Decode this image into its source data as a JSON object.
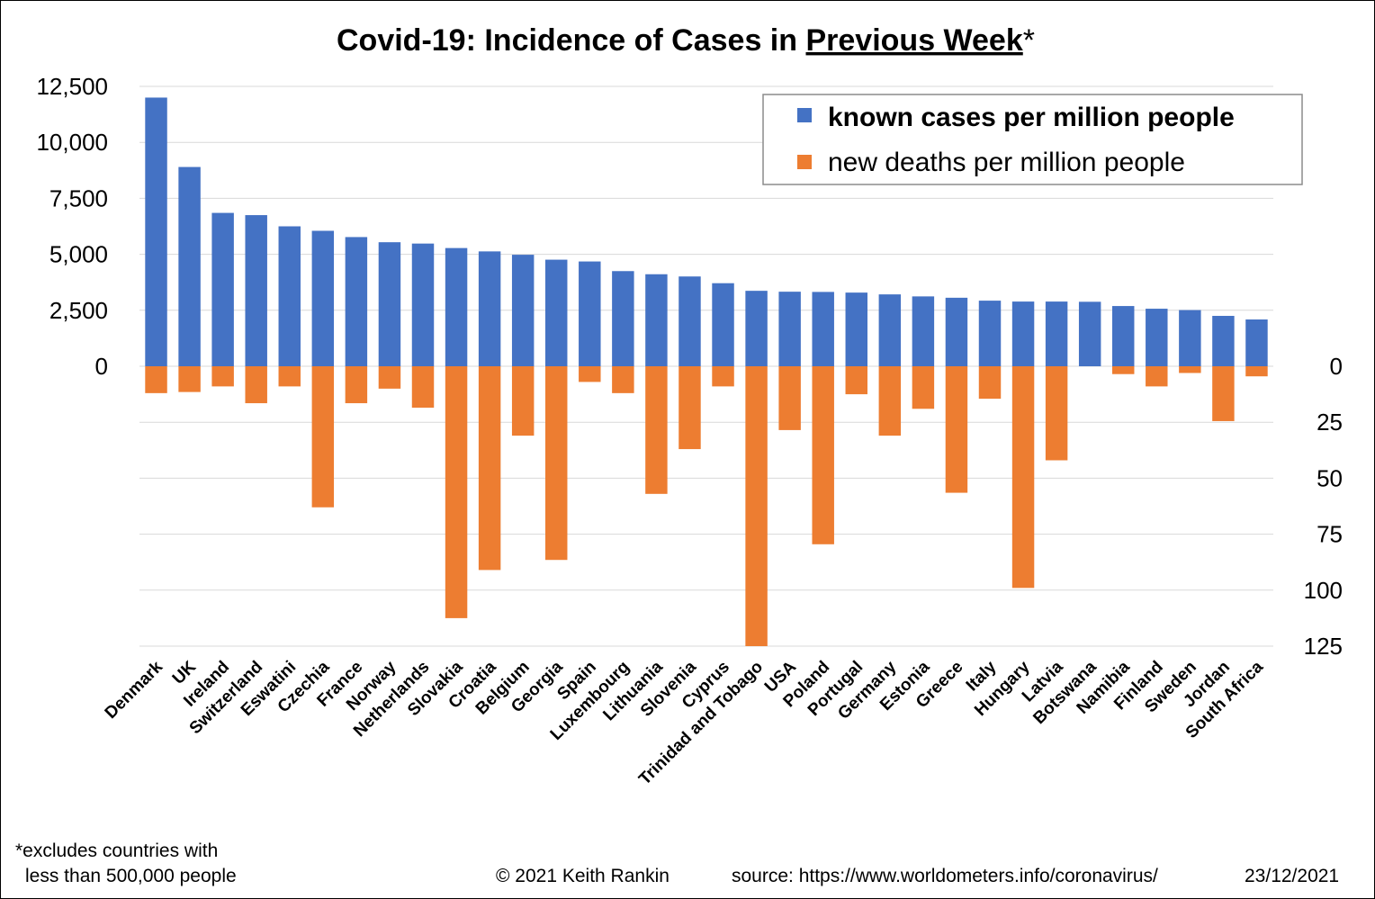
{
  "chart_data": {
    "type": "bar",
    "title_main": "Covid-19: Incidence of Cases in ",
    "title_emphasis": "Previous Week",
    "title_suffix": "*",
    "categories": [
      "Denmark",
      "UK",
      "Ireland",
      "Switzerland",
      "Eswatini",
      "Czechia",
      "France",
      "Norway",
      "Netherlands",
      "Slovakia",
      "Croatia",
      "Belgium",
      "Georgia",
      "Spain",
      "Luxembourg",
      "Lithuania",
      "Slovenia",
      "Cyprus",
      "Trinidad and Tobago",
      "USA",
      "Poland",
      "Portugal",
      "Germany",
      "Estonia",
      "Greece",
      "Italy",
      "Hungary",
      "Latvia",
      "Botswana",
      "Namibia",
      "Finland",
      "Sweden",
      "Jordan",
      "South Africa"
    ],
    "series": [
      {
        "name": "known cases per million people",
        "axis": "left",
        "color": "#4472C4",
        "values": [
          12000,
          8900,
          6850,
          6750,
          6250,
          6050,
          5770,
          5540,
          5480,
          5280,
          5130,
          4980,
          4760,
          4680,
          4250,
          4110,
          4010,
          3710,
          3370,
          3330,
          3320,
          3290,
          3210,
          3120,
          3060,
          2930,
          2890,
          2890,
          2880,
          2690,
          2570,
          2510,
          2250,
          2090
        ]
      },
      {
        "name": "new deaths per million people",
        "axis": "right",
        "color": "#ED7D31",
        "values": [
          12,
          11.5,
          9,
          16.5,
          9,
          63,
          16.5,
          10,
          18.5,
          112.5,
          91,
          31,
          86.5,
          7,
          12,
          57,
          37,
          9,
          125,
          28.5,
          79.5,
          12.5,
          31,
          19,
          56.5,
          14.5,
          99,
          42,
          0,
          3.5,
          9,
          3,
          24.5,
          4.5
        ]
      }
    ],
    "left_axis": {
      "ylim": [
        0,
        12500
      ],
      "ticks": [
        "12,500",
        "10,000",
        "7,500",
        "5,000",
        "2,500",
        "0"
      ]
    },
    "right_axis": {
      "ylim": [
        0,
        125
      ],
      "inverted": true,
      "ticks": [
        "0",
        "25",
        "50",
        "75",
        "100",
        "125"
      ]
    },
    "grid": true,
    "legend_position": "top-right"
  },
  "footer": {
    "note_line1": "*excludes countries with",
    "note_line2": "less than 500,000  people",
    "copyright": "© 2021   Keith Rankin",
    "source": "source: https://www.worldometers.info/coronavirus/",
    "date": "23/12/2021"
  },
  "colors": {
    "cases": "#4472C4",
    "deaths": "#ED7D31",
    "grid": "#D9D9D9",
    "border": "#000000"
  }
}
